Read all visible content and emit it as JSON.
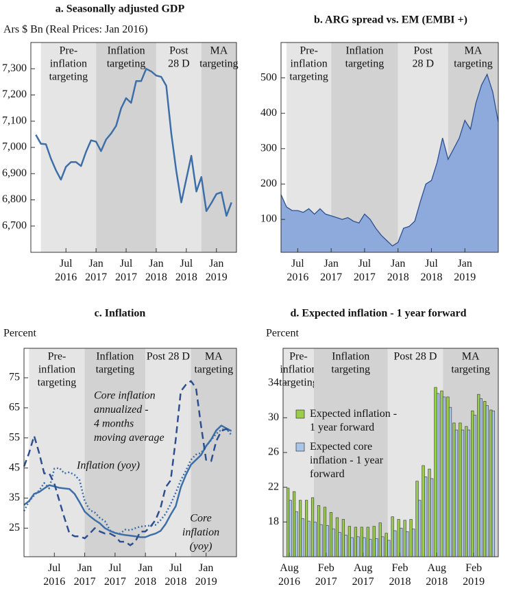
{
  "chart_data": [
    {
      "type": "line",
      "title": "a. Seasonally adjusted GDP",
      "ylabel": "Ars $ Bn (Real Prices: Jan 2016)",
      "xlim": [
        "2015-12",
        "2019-05"
      ],
      "ylim": [
        6600,
        7400
      ],
      "yticks": [
        {
          "value": 6700,
          "label": "6,700"
        },
        {
          "value": 6800,
          "label": "6,800"
        },
        {
          "value": 6900,
          "label": "6,900"
        },
        {
          "value": 7000,
          "label": "7,000"
        },
        {
          "value": 7100,
          "label": "7,100"
        },
        {
          "value": 7200,
          "label": "7,200"
        },
        {
          "value": 7300,
          "label": "7,300"
        }
      ],
      "xticks": [
        {
          "value": "2016-07",
          "label": "Jul 2016"
        },
        {
          "value": "2017-01",
          "label": "Jan 2017"
        },
        {
          "value": "2017-07",
          "label": "Jul 2017"
        },
        {
          "value": "2018-01",
          "label": "Jan 2018"
        },
        {
          "value": "2018-07",
          "label": "Jul 2018"
        },
        {
          "value": "2019-01",
          "label": "Jan 2019"
        }
      ],
      "regions": [
        {
          "label": [
            "Pre-",
            "inflation",
            "targeting"
          ],
          "start": "2016-02",
          "end": "2017-01",
          "color": "#e5e5e5"
        },
        {
          "label": [
            "Inflation",
            "targeting"
          ],
          "start": "2017-01",
          "end": "2018-01",
          "color": "#d2d2d2"
        },
        {
          "label": [
            "Post",
            "28 D"
          ],
          "start": "2018-01",
          "end": "2018-10",
          "color": "#e5e5e5"
        },
        {
          "label": [
            "MA",
            "targeting"
          ],
          "start": "2018-10",
          "end": "2019-05",
          "color": "#d2d2d2"
        }
      ],
      "x": [
        "2016-01",
        "2016-02",
        "2016-03",
        "2016-04",
        "2016-05",
        "2016-06",
        "2016-07",
        "2016-08",
        "2016-09",
        "2016-10",
        "2016-11",
        "2016-12",
        "2017-01",
        "2017-02",
        "2017-03",
        "2017-04",
        "2017-05",
        "2017-06",
        "2017-07",
        "2017-08",
        "2017-09",
        "2017-10",
        "2017-11",
        "2017-12",
        "2018-01",
        "2018-02",
        "2018-03",
        "2018-04",
        "2018-05",
        "2018-06",
        "2018-07",
        "2018-08",
        "2018-09",
        "2018-10",
        "2018-11",
        "2018-12",
        "2019-01",
        "2019-02",
        "2019-03",
        "2019-04"
      ],
      "series": [
        {
          "color": "#3d6ea8",
          "style": "solid",
          "values": [
            7048,
            7014,
            7012,
            6957,
            6913,
            6877,
            6926,
            6944,
            6944,
            6929,
            6983,
            7027,
            7022,
            6986,
            7030,
            7053,
            7082,
            7149,
            7188,
            7170,
            7253,
            7253,
            7300,
            7290,
            7274,
            7269,
            7235,
            7053,
            6910,
            6790,
            6879,
            6968,
            6832,
            6887,
            6757,
            6788,
            6822,
            6829,
            6739,
            6790
          ]
        }
      ]
    },
    {
      "type": "area",
      "title": "b. ARG spread vs. EM (EMBI +)",
      "xlim": [
        "2016-04",
        "2019-07"
      ],
      "ylim": [
        7,
        600
      ],
      "yticks": [
        100,
        200,
        300,
        400,
        500
      ],
      "xticks": [
        {
          "value": "2016-07",
          "label": "Jul 2016"
        },
        {
          "value": "2017-01",
          "label": "Jan 2017"
        },
        {
          "value": "2017-07",
          "label": "Jul 2017"
        },
        {
          "value": "2018-01",
          "label": "Jan 2018"
        },
        {
          "value": "2018-07",
          "label": "Jul 2018"
        },
        {
          "value": "2019-01",
          "label": "Jan 2019"
        }
      ],
      "regions": [
        {
          "label": [
            "Pre-",
            "inflation",
            "targeting"
          ],
          "start": "2016-05",
          "end": "2017-01",
          "color": "#e5e5e5"
        },
        {
          "label": [
            "Inflation",
            "targeting"
          ],
          "start": "2017-01",
          "end": "2018-01",
          "color": "#d2d2d2"
        },
        {
          "label": [
            "Post",
            "28 D"
          ],
          "start": "2018-01",
          "end": "2018-10",
          "color": "#e5e5e5"
        },
        {
          "label": [
            "MA",
            "targeting"
          ],
          "start": "2018-10",
          "end": "2019-07",
          "color": "#d2d2d2"
        }
      ],
      "x": [
        "2016-04",
        "2016-05",
        "2016-06",
        "2016-07",
        "2016-08",
        "2016-09",
        "2016-10",
        "2016-11",
        "2016-12",
        "2017-01",
        "2017-02",
        "2017-03",
        "2017-04",
        "2017-05",
        "2017-06",
        "2017-07",
        "2017-08",
        "2017-09",
        "2017-10",
        "2017-11",
        "2017-12",
        "2018-01",
        "2018-02",
        "2018-03",
        "2018-04",
        "2018-05",
        "2018-06",
        "2018-07",
        "2018-08",
        "2018-09",
        "2018-10",
        "2018-11",
        "2018-12",
        "2019-01",
        "2019-02",
        "2019-03",
        "2019-04",
        "2019-05",
        "2019-06",
        "2019-07"
      ],
      "series": [
        {
          "color": "#2d4f8f",
          "fill": "#8eaadc",
          "values": [
            170,
            135,
            125,
            125,
            120,
            130,
            115,
            130,
            115,
            110,
            105,
            100,
            105,
            95,
            90,
            115,
            100,
            75,
            55,
            40,
            25,
            35,
            75,
            80,
            95,
            150,
            200,
            210,
            260,
            330,
            270,
            300,
            330,
            380,
            355,
            430,
            480,
            510,
            460,
            375
          ]
        }
      ]
    },
    {
      "type": "line",
      "title": "c. Inflation",
      "ylabel": "Percent",
      "xlim": [
        "2016-01",
        "2019-07"
      ],
      "ylim": [
        15.5,
        84.8
      ],
      "yticks": [
        25,
        35,
        45,
        55,
        65,
        75
      ],
      "xticks": [
        {
          "value": "2016-07",
          "label": "Jul 2016"
        },
        {
          "value": "2017-01",
          "label": "Jan 2017"
        },
        {
          "value": "2017-07",
          "label": "Jul 2017"
        },
        {
          "value": "2018-01",
          "label": "Jan 2018"
        },
        {
          "value": "2018-07",
          "label": "Jul 2018"
        },
        {
          "value": "2019-01",
          "label": "Jan 2019"
        }
      ],
      "regions": [
        {
          "label": [
            "Pre-",
            "inflation",
            "targeting"
          ],
          "start": "2016-02",
          "end": "2017-01",
          "color": "#e5e5e5"
        },
        {
          "label": [
            "Inflation",
            "targeting"
          ],
          "start": "2017-01",
          "end": "2018-01",
          "color": "#d2d2d2"
        },
        {
          "label": [
            "Post 28 D"
          ],
          "start": "2018-01",
          "end": "2018-10",
          "color": "#e5e5e5"
        },
        {
          "label": [
            "MA",
            "targeting"
          ],
          "start": "2018-10",
          "end": "2019-07",
          "color": "#d2d2d2"
        }
      ],
      "annotations": [
        [
          "Core inflation",
          "annualized -",
          "4 months",
          "moving average"
        ],
        [
          "Inflation (yoy)"
        ],
        [
          "Core",
          "inflation",
          "(yoy)"
        ]
      ],
      "x": [
        "2016-01",
        "2016-02",
        "2016-03",
        "2016-04",
        "2016-05",
        "2016-06",
        "2016-07",
        "2016-08",
        "2016-09",
        "2016-10",
        "2016-11",
        "2016-12",
        "2017-01",
        "2017-02",
        "2017-03",
        "2017-04",
        "2017-05",
        "2017-06",
        "2017-07",
        "2017-08",
        "2017-09",
        "2017-10",
        "2017-11",
        "2017-12",
        "2018-01",
        "2018-02",
        "2018-03",
        "2018-04",
        "2018-05",
        "2018-06",
        "2018-07",
        "2018-08",
        "2018-09",
        "2018-10",
        "2018-11",
        "2018-12",
        "2019-01",
        "2019-02",
        "2019-03",
        "2019-04",
        "2019-05",
        "2019-06"
      ],
      "series": [
        {
          "color": "#3d6ea8",
          "style": "solid",
          "values": [
            32.7,
            34,
            36.4,
            37,
            38.2,
            39.3,
            38.9,
            38.4,
            38.2,
            38,
            36.4,
            33.6,
            30.5,
            29,
            27.7,
            26.6,
            25,
            24.1,
            23.4,
            23,
            22.7,
            22.5,
            22.3,
            22,
            22,
            22.7,
            23.2,
            24.1,
            26.4,
            29.5,
            32.3,
            38.6,
            42.7,
            46.1,
            47.7,
            49.3,
            52.3,
            54.5,
            57.5,
            59.1,
            58.2,
            57.3
          ]
        },
        {
          "color": "#3d6ea8",
          "style": "dotted",
          "values": [
            30.7,
            33.9,
            35.9,
            37.5,
            40,
            38.2,
            44.8,
            45,
            43.2,
            43.6,
            42.7,
            40.9,
            34,
            31,
            30.2,
            28.4,
            27.3,
            24.3,
            23.4,
            23.2,
            24.5,
            24.3,
            25,
            25.5,
            25.7,
            25.9,
            26.1,
            27.7,
            29.8,
            33,
            36.8,
            40.9,
            44.1,
            47.7,
            49.5,
            50,
            52.3,
            54.3,
            56.4,
            57.7,
            58.2,
            55.9
          ]
        },
        {
          "color": "#2d4f8f",
          "style": "dashed",
          "values": [
            45.5,
            50,
            55.7,
            50,
            43.2,
            43.2,
            39.8,
            34,
            28.4,
            23.2,
            22.3,
            22.3,
            21.6,
            23.2,
            25,
            23.9,
            23.2,
            23.2,
            22.3,
            20.5,
            20.5,
            19.3,
            20.5,
            23.9,
            23.9,
            25.5,
            27.7,
            31.8,
            38.6,
            40.9,
            54.5,
            70.5,
            72.7,
            73.9,
            71.6,
            59.1,
            47.7,
            47.3,
            53.9,
            57.3,
            58,
            56.8
          ]
        }
      ]
    },
    {
      "type": "bar",
      "title": "d. Expected inflation - 1 year forward",
      "ylabel": "Percent",
      "xlim": [
        "2016-07",
        "2019-06"
      ],
      "ylim": [
        14,
        38
      ],
      "yticks": [
        18,
        22,
        26,
        30,
        34
      ],
      "legend": "upper left",
      "xticks": [
        {
          "value": "2016-08",
          "label": "Aug 2016"
        },
        {
          "value": "2017-02",
          "label": "Feb 2017"
        },
        {
          "value": "2017-08",
          "label": "Aug 2017"
        },
        {
          "value": "2018-02",
          "label": "Feb 2018"
        },
        {
          "value": "2018-08",
          "label": "Aug 2018"
        },
        {
          "value": "2019-02",
          "label": "Feb 2019"
        }
      ],
      "regions": [
        {
          "label": [
            "Pre-",
            "inflation",
            "targeting"
          ],
          "start": "2016-07",
          "end": "2016-12",
          "color": "#e5e5e5"
        },
        {
          "label": [
            "Inflation",
            "targeting"
          ],
          "start": "2016-12",
          "end": "2017-12",
          "color": "#d2d2d2"
        },
        {
          "label": [
            "Post 28 D"
          ],
          "start": "2017-12",
          "end": "2018-09",
          "color": "#e5e5e5"
        },
        {
          "label": [
            "MA",
            "targeting"
          ],
          "start": "2018-09",
          "end": "2019-06",
          "color": "#d2d2d2"
        }
      ],
      "x": [
        "2016-08",
        "2016-09",
        "2016-10",
        "2016-11",
        "2016-12",
        "2017-01",
        "2017-02",
        "2017-03",
        "2017-04",
        "2017-05",
        "2017-06",
        "2017-07",
        "2017-08",
        "2017-09",
        "2017-10",
        "2017-11",
        "2017-12",
        "2018-01",
        "2018-02",
        "2018-03",
        "2018-04",
        "2018-05",
        "2018-06",
        "2018-07",
        "2018-08",
        "2018-09",
        "2018-10",
        "2018-11",
        "2018-12",
        "2019-01",
        "2019-02",
        "2019-03",
        "2019-04",
        "2019-05"
      ],
      "series": [
        {
          "name": "Expected inflation - 1 year forward",
          "color": "#9acd4a",
          "values": [
            21.9,
            21.5,
            20.5,
            20.5,
            20.8,
            19.9,
            19.7,
            19.1,
            18.5,
            18.3,
            17.5,
            17.4,
            17.4,
            17.4,
            17.5,
            17.9,
            16.7,
            18.6,
            18.3,
            18.2,
            18.3,
            22.7,
            24.5,
            24.1,
            33.5,
            33.1,
            32.4,
            29.4,
            29.4,
            29.0,
            30.8,
            32.7,
            31.9,
            30.9
          ]
        },
        {
          "name": "Expected core inflation - 1 year forward",
          "color": "#a9c6e8",
          "values": [
            20.5,
            19.2,
            18.4,
            18.1,
            18.0,
            17.7,
            17.6,
            17.2,
            16.8,
            16.5,
            16.2,
            16.3,
            16.2,
            16.0,
            16.1,
            16.3,
            15.9,
            17.0,
            17.3,
            16.9,
            17.2,
            20.5,
            23.2,
            23.0,
            32.8,
            32.4,
            31.2,
            28.6,
            28.6,
            28.6,
            30.3,
            32.2,
            31.4,
            30.8
          ]
        }
      ]
    }
  ]
}
